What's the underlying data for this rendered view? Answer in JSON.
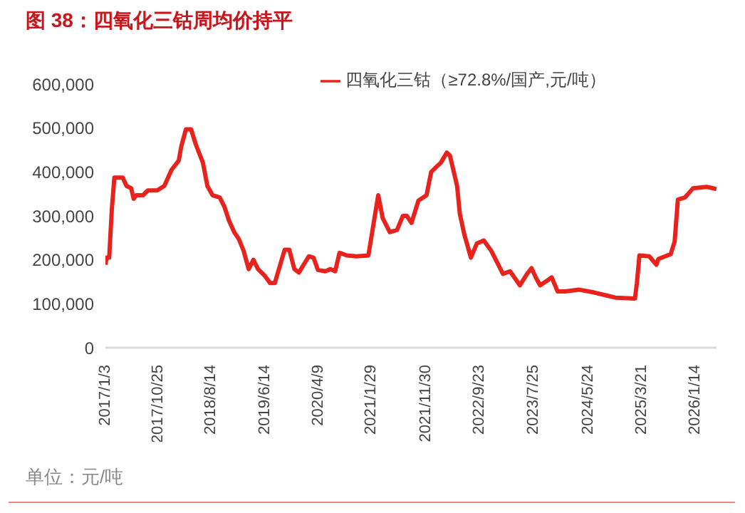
{
  "chart_data": {
    "type": "line",
    "title": "图 38：四氧化三钴周均价持平",
    "annotations": [
      "单位：元/吨"
    ],
    "legend": "top",
    "grid": false,
    "marker": "none",
    "line_style": "solid",
    "ylim": [
      0,
      600000
    ],
    "yticks": [
      {
        "value": 0,
        "label": "0"
      },
      {
        "value": 100000,
        "label": "100,000"
      },
      {
        "value": 200000,
        "label": "200,000"
      },
      {
        "value": 300000,
        "label": "300,000"
      },
      {
        "value": 400000,
        "label": "400,000"
      },
      {
        "value": 500000,
        "label": "500,000"
      },
      {
        "value": 600000,
        "label": "600,000"
      }
    ],
    "xlim": [
      "2017-01-03",
      "2026-05-12"
    ],
    "xticks": [
      {
        "value": "2017-01-03",
        "label": "2017/1/3"
      },
      {
        "value": "2017-10-25",
        "label": "2017/10/25"
      },
      {
        "value": "2018-08-14",
        "label": "2018/8/14"
      },
      {
        "value": "2019-06-14",
        "label": "2019/6/14"
      },
      {
        "value": "2020-04-09",
        "label": "2020/4/9"
      },
      {
        "value": "2021-01-29",
        "label": "2021/1/29"
      },
      {
        "value": "2021-11-30",
        "label": "2021/11/30"
      },
      {
        "value": "2022-09-23",
        "label": "2022/9/23"
      },
      {
        "value": "2023-07-25",
        "label": "2023/7/25"
      },
      {
        "value": "2024-05-24",
        "label": "2024/5/24"
      },
      {
        "value": "2025-03-21",
        "label": "2025/3/21"
      },
      {
        "value": "2026-01-14",
        "label": "2026/1/14"
      }
    ],
    "x": [
      "2017-01-03",
      "2017-01-10",
      "2017-01-24",
      "2017-02-08",
      "2017-02-22",
      "2017-04-10",
      "2017-05-01",
      "2017-05-27",
      "2017-06-10",
      "2017-06-25",
      "2017-08-01",
      "2017-08-29",
      "2017-10-19",
      "2017-11-28",
      "2018-01-08",
      "2018-02-17",
      "2018-03-03",
      "2018-03-29",
      "2018-04-27",
      "2018-05-23",
      "2018-07-02",
      "2018-07-27",
      "2018-08-25",
      "2018-10-04",
      "2018-10-30",
      "2018-11-25",
      "2018-12-24",
      "2019-01-19",
      "2019-02-14",
      "2019-03-15",
      "2019-04-10",
      "2019-05-06",
      "2019-06-14",
      "2019-07-13",
      "2019-08-08",
      "2019-08-23",
      "2019-10-02",
      "2019-10-28",
      "2019-11-25",
      "2019-12-21",
      "2020-01-09",
      "2020-02-14",
      "2020-03-11",
      "2020-04-05",
      "2020-05-16",
      "2020-06-14",
      "2020-07-10",
      "2020-08-04",
      "2020-09-13",
      "2020-11-07",
      "2021-01-12",
      "2021-03-08",
      "2021-04-02",
      "2021-05-12",
      "2021-06-21",
      "2021-07-24",
      "2021-08-15",
      "2021-09-10",
      "2021-10-19",
      "2021-12-03",
      "2021-12-29",
      "2022-01-23",
      "2022-02-21",
      "2022-03-26",
      "2022-04-13",
      "2022-05-23",
      "2022-06-07",
      "2022-07-02",
      "2022-08-08",
      "2022-09-10",
      "2022-10-19",
      "2022-11-29",
      "2023-01-08",
      "2023-02-03",
      "2023-03-15",
      "2023-05-09",
      "2023-06-18",
      "2023-07-13",
      "2023-08-08",
      "2023-08-30",
      "2023-10-09",
      "2023-11-03",
      "2023-12-06",
      "2024-01-15",
      "2024-04-05",
      "2024-06-24",
      "2024-09-13",
      "2024-10-23",
      "2025-02-10",
      "2025-02-21",
      "2025-03-07",
      "2025-05-01",
      "2025-06-10",
      "2025-06-21",
      "2025-08-29",
      "2025-09-20",
      "2025-10-08",
      "2025-11-17",
      "2026-01-01",
      "2026-03-18",
      "2026-05-12"
    ],
    "series": [
      {
        "name": "四氧化三钴（≥72.8%/国产,元/吨）",
        "color": "#e8221c",
        "values": [
          189000,
          205000,
          205000,
          316000,
          387000,
          387000,
          368000,
          363000,
          339000,
          347000,
          347000,
          358000,
          358000,
          368000,
          405000,
          426000,
          458000,
          497000,
          497000,
          463000,
          421000,
          368000,
          347000,
          342000,
          321000,
          289000,
          263000,
          247000,
          221000,
          179000,
          200000,
          179000,
          163000,
          147000,
          147000,
          168000,
          223000,
          223000,
          179000,
          171000,
          184000,
          208000,
          205000,
          177000,
          174000,
          179000,
          174000,
          216000,
          210000,
          208000,
          210000,
          347000,
          295000,
          263000,
          268000,
          300000,
          300000,
          284000,
          335000,
          347000,
          400000,
          410000,
          421000,
          444000,
          437000,
          368000,
          305000,
          258000,
          205000,
          237000,
          244000,
          221000,
          189000,
          168000,
          174000,
          142000,
          168000,
          181000,
          158000,
          142000,
          153000,
          160000,
          128000,
          128000,
          132000,
          126000,
          118000,
          114000,
          112000,
          147000,
          210000,
          208000,
          189000,
          202000,
          213000,
          242000,
          337000,
          342000,
          363000,
          366000,
          361000
        ]
      }
    ]
  }
}
